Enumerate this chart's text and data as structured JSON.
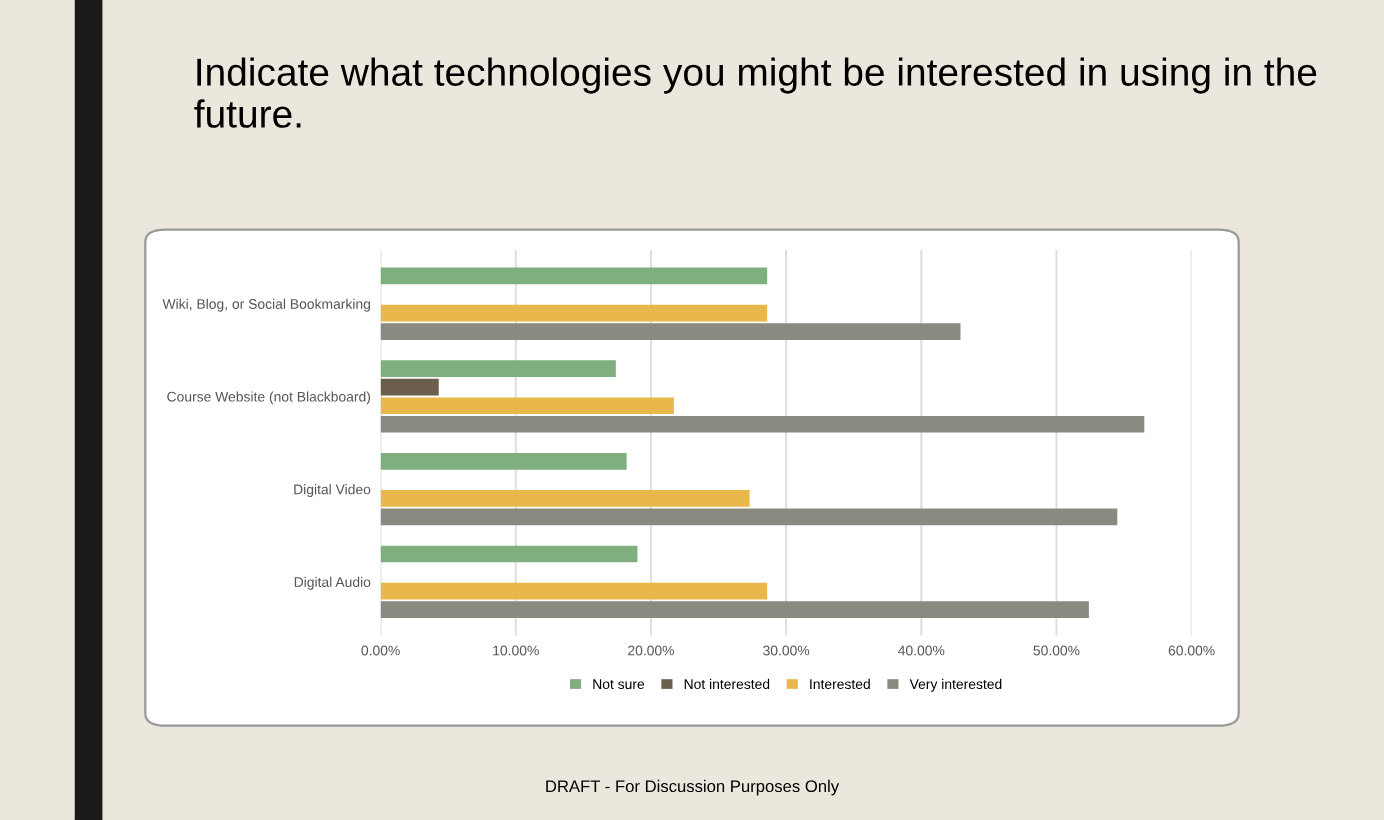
{
  "chart_data": {
    "type": "bar",
    "orientation": "horizontal",
    "title": "Indicate what technologies you might be interested in using in the future.",
    "categories": [
      "Wiki, Blog, or Social Bookmarking",
      "Course Website (not Blackboard)",
      "Digital Video",
      "Digital Audio"
    ],
    "series": [
      {
        "name": "Not sure",
        "color": "#7fae7f",
        "values": [
          28.6,
          17.4,
          18.2,
          19.0
        ]
      },
      {
        "name": "Not interested",
        "color": "#6b5e4a",
        "values": [
          0,
          4.3,
          0,
          0
        ]
      },
      {
        "name": "Interested",
        "color": "#e8b84a",
        "values": [
          28.6,
          21.7,
          27.3,
          28.6
        ]
      },
      {
        "name": "Very interested",
        "color": "#8a8a80",
        "values": [
          42.9,
          56.5,
          54.5,
          52.4
        ]
      }
    ],
    "xlim": [
      0,
      60
    ],
    "xticks": [
      {
        "value": 0,
        "label": "0.00%"
      },
      {
        "value": 10,
        "label": "10.00%"
      },
      {
        "value": 20,
        "label": "20.00%"
      },
      {
        "value": 30,
        "label": "30.00%"
      },
      {
        "value": 40,
        "label": "40.00%"
      },
      {
        "value": 50,
        "label": "50.00%"
      },
      {
        "value": 60,
        "label": "60.00%"
      }
    ],
    "grid": "x",
    "legend": "bottom",
    "annotations": [
      "DRAFT - For Discussion Purposes Only"
    ]
  }
}
